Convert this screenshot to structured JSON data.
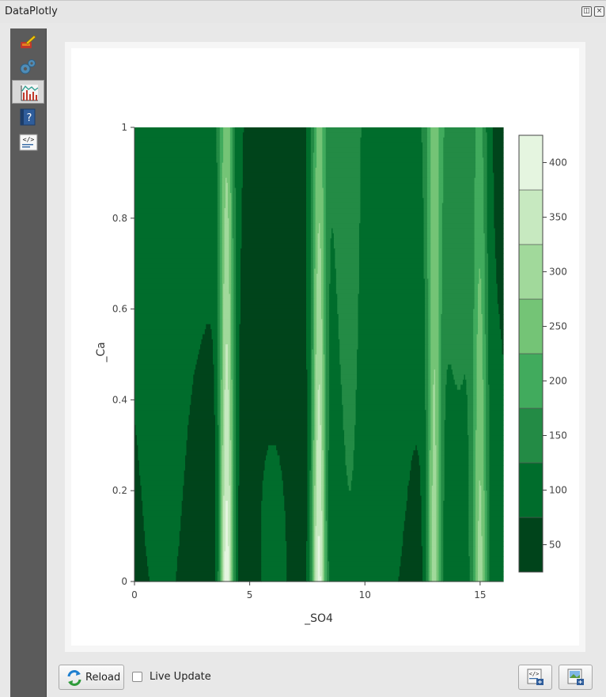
{
  "window": {
    "title": "DataPlotly"
  },
  "sidebar": {
    "items": [
      {
        "icon": "brush-icon"
      },
      {
        "icon": "settings-gears-icon"
      },
      {
        "icon": "chart-icon",
        "active": true
      },
      {
        "icon": "help-icon"
      },
      {
        "icon": "code-icon"
      }
    ]
  },
  "bottom": {
    "reload_label": "Reload",
    "live_update_label": "Live Update",
    "live_update_checked": false
  },
  "colors": {
    "scale": [
      "#00441b",
      "#006d2c",
      "#238b45",
      "#41ab5d",
      "#74c476",
      "#a1d99b",
      "#c7e9c0",
      "#e5f5e0",
      "#f7fcf5"
    ]
  },
  "chart_data": {
    "type": "contour",
    "xlabel": "_SO4",
    "ylabel": "_Ca",
    "xlim": [
      0,
      16
    ],
    "ylim": [
      0,
      1
    ],
    "x_ticks": [
      "0",
      "5",
      "10",
      "15"
    ],
    "y_ticks": [
      "0",
      "0.2",
      "0.4",
      "0.6",
      "0.8",
      "1"
    ],
    "colorbar": {
      "ticks": [
        "50",
        "100",
        "150",
        "200",
        "250",
        "300",
        "350",
        "400"
      ],
      "levels": [
        25,
        75,
        125,
        175,
        225,
        275,
        325,
        375,
        425
      ]
    },
    "z_range": [
      25,
      425
    ],
    "peaks": [
      {
        "x": 4,
        "y": 0,
        "z": 425
      },
      {
        "x": 8,
        "y": 0,
        "z": 400
      },
      {
        "x": 13,
        "y": 0,
        "z": 300
      },
      {
        "x": 15,
        "y": 0,
        "z": 260
      }
    ]
  }
}
